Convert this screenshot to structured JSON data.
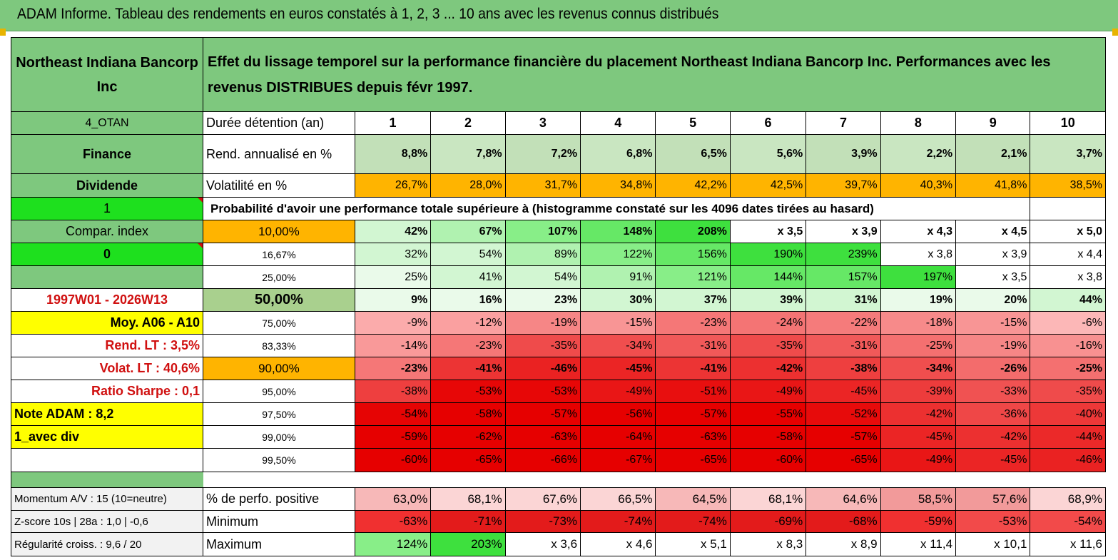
{
  "title": "ADAM Informe. Tableau des rendements en euros constatés à 1, 2, 3 ... 10 ans avec les revenus connus distribués",
  "company": "Northeast Indiana Bancorp Inc",
  "header_text": "Effet du lissage temporel sur la performance financière du placement Northeast Indiana Bancorp Inc. Performances avec les revenus DISTRIBUES depuis févr 1997.",
  "sidebar": {
    "code": "4_OTAN",
    "sector": "Finance",
    "type": "Dividende",
    "flag1": "1",
    "compar": "Compar. index",
    "flag0": "0",
    "period": "1997W01 - 2026W13",
    "moy": "Moy. A06 - A10",
    "rend_lt": "Rend. LT :   3,5%",
    "volat_lt": "Volat. LT :   40,6%",
    "sharpe": "Ratio Sharpe :    0,1",
    "note": "Note ADAM : 8,2",
    "avec_div": "1_avec div",
    "momentum": "Momentum A/V : 15 (10=neutre)",
    "zscore": "Z-score 10s | 28a : 1,0 | -0,6",
    "regularite": "Régularité croiss. : 9,6 / 20"
  },
  "stats": {
    "duree_label": "Durée détention (an)",
    "years": [
      "1",
      "2",
      "3",
      "4",
      "5",
      "6",
      "7",
      "8",
      "9",
      "10"
    ],
    "rend_label": "Rend. annualisé en %",
    "rend": [
      "8,8%",
      "7,8%",
      "7,2%",
      "6,8%",
      "6,5%",
      "5,6%",
      "3,9%",
      "2,2%",
      "2,1%",
      "3,7%"
    ],
    "vol_label": "Volatilité en %",
    "vol": [
      "26,7%",
      "28,0%",
      "31,7%",
      "34,8%",
      "42,2%",
      "42,5%",
      "39,7%",
      "40,3%",
      "41,8%",
      "38,5%"
    ]
  },
  "proba_title": "Probabilité d'avoir une performance totale supérieure à (histogramme constaté sur les 4096 dates tirées au hasard)",
  "proba_rows": [
    {
      "label": "10,00%",
      "values": [
        "42%",
        "67%",
        "107%",
        "148%",
        "208%",
        "x 3,5",
        "x 3,9",
        "x 4,3",
        "x 4,5",
        "x 5,0"
      ]
    },
    {
      "label": "16,67%",
      "values": [
        "32%",
        "54%",
        "89%",
        "122%",
        "156%",
        "190%",
        "239%",
        "x 3,8",
        "x 3,9",
        "x 4,4"
      ]
    },
    {
      "label": "25,00%",
      "values": [
        "25%",
        "41%",
        "54%",
        "91%",
        "121%",
        "144%",
        "157%",
        "197%",
        "x 3,5",
        "x 3,8"
      ]
    },
    {
      "label": "50,00%",
      "values": [
        "9%",
        "16%",
        "23%",
        "30%",
        "37%",
        "39%",
        "31%",
        "19%",
        "20%",
        "44%"
      ]
    },
    {
      "label": "75,00%",
      "values": [
        "-9%",
        "-12%",
        "-19%",
        "-15%",
        "-23%",
        "-24%",
        "-22%",
        "-18%",
        "-15%",
        "-6%"
      ]
    },
    {
      "label": "83,33%",
      "values": [
        "-14%",
        "-23%",
        "-35%",
        "-34%",
        "-31%",
        "-35%",
        "-31%",
        "-25%",
        "-19%",
        "-16%"
      ]
    },
    {
      "label": "90,00%",
      "values": [
        "-23%",
        "-41%",
        "-46%",
        "-45%",
        "-41%",
        "-42%",
        "-38%",
        "-34%",
        "-26%",
        "-25%"
      ]
    },
    {
      "label": "95,00%",
      "values": [
        "-38%",
        "-53%",
        "-53%",
        "-49%",
        "-51%",
        "-49%",
        "-45%",
        "-39%",
        "-33%",
        "-35%"
      ]
    },
    {
      "label": "97,50%",
      "values": [
        "-54%",
        "-58%",
        "-57%",
        "-56%",
        "-57%",
        "-55%",
        "-52%",
        "-42%",
        "-36%",
        "-40%"
      ]
    },
    {
      "label": "99,00%",
      "values": [
        "-59%",
        "-62%",
        "-63%",
        "-64%",
        "-63%",
        "-58%",
        "-57%",
        "-45%",
        "-42%",
        "-44%"
      ]
    },
    {
      "label": "99,50%",
      "values": [
        "-60%",
        "-65%",
        "-66%",
        "-67%",
        "-65%",
        "-60%",
        "-65%",
        "-49%",
        "-45%",
        "-46%"
      ]
    }
  ],
  "summary": {
    "pos_label": "% de perfo. positive",
    "pos": [
      "63,0%",
      "68,1%",
      "67,6%",
      "66,5%",
      "64,5%",
      "68,1%",
      "64,6%",
      "58,5%",
      "57,6%",
      "68,9%"
    ],
    "min_label": "Minimum",
    "min": [
      "-63%",
      "-71%",
      "-73%",
      "-74%",
      "-74%",
      "-69%",
      "-68%",
      "-59%",
      "-53%",
      "-54%"
    ],
    "max_label": "Maximum",
    "max": [
      "124%",
      "203%",
      "x 3,6",
      "x 4,6",
      "x 5,1",
      "x 8,3",
      "x 8,9",
      "x 11,4",
      "x 10,1",
      "x 11,6"
    ]
  },
  "colors": {
    "header_green": "#7ec87e",
    "bright_green": "#1ee01e",
    "yellow": "#ffff00",
    "orange": "#ffb400",
    "label_red": "#d01010"
  }
}
